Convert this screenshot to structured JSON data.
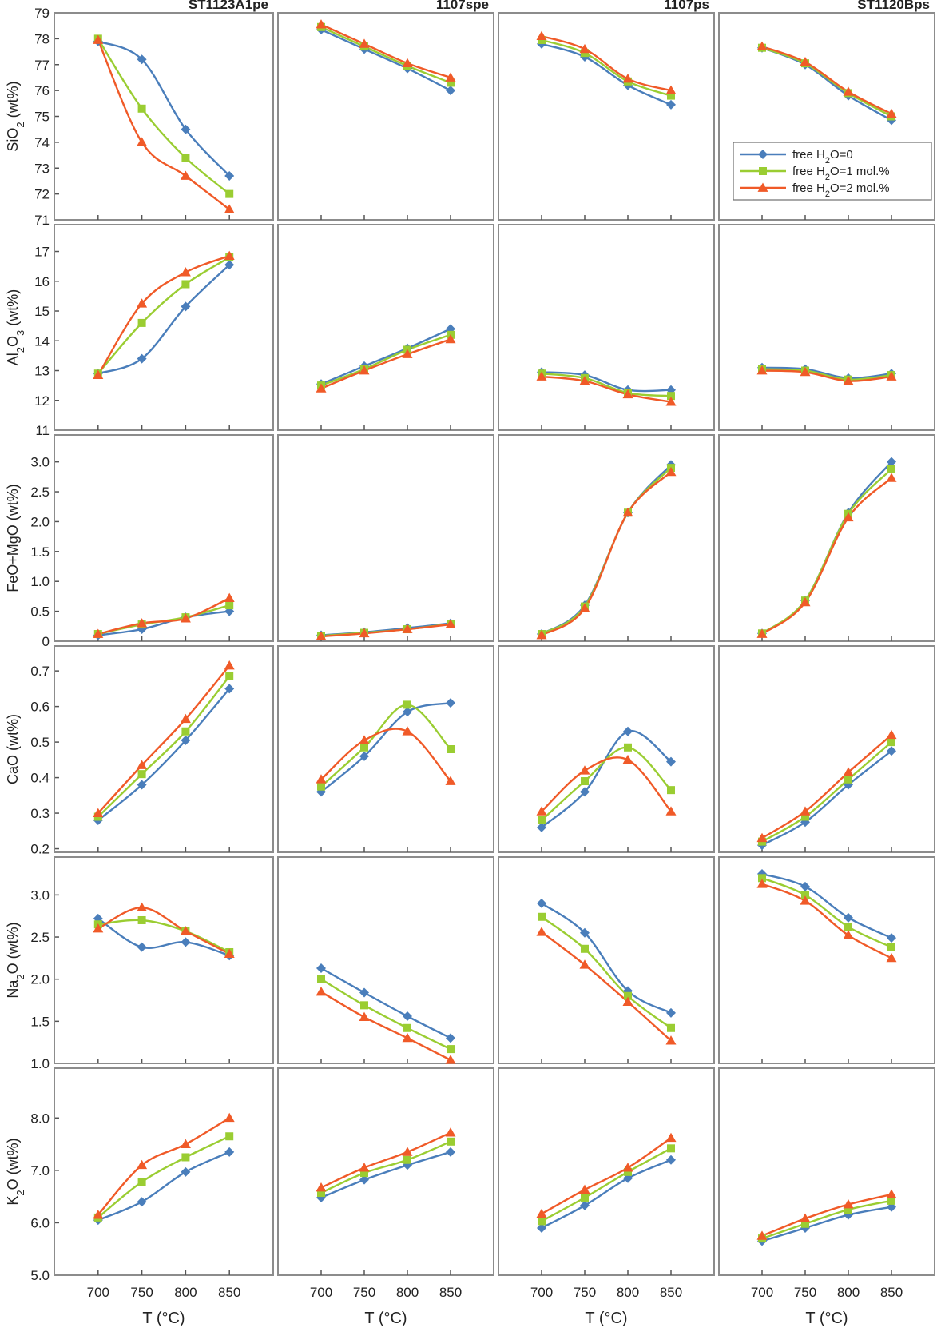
{
  "chart_data": {
    "type": "line",
    "columns": [
      "ST1123A1pe",
      "1107spe",
      "1107ps",
      "ST1120Bps"
    ],
    "x": [
      700,
      750,
      800,
      850
    ],
    "x_tick_labels": [
      "700",
      "750",
      "800",
      "850"
    ],
    "xlabel": "T (°C)",
    "legend": {
      "location": "upper-right of SiO2 panel, column ST1120Bps",
      "entries": [
        {
          "prefix": "free H",
          "sub": "2",
          "suffix": "O=0",
          "color": "#4a7ebb",
          "marker": "diamond"
        },
        {
          "prefix": "free H",
          "sub": "2",
          "suffix": "O=1 mol.%",
          "color": "#9acd32",
          "marker": "square"
        },
        {
          "prefix": "free H",
          "sub": "2",
          "suffix": "O=2 mol.%",
          "color": "#f05a28",
          "marker": "triangle"
        }
      ]
    },
    "rows": [
      {
        "ylabel_parts": [
          {
            "t": "SiO"
          },
          {
            "t": "2",
            "sub": true
          },
          {
            "t": "  (wt%)"
          }
        ],
        "ylim": [
          71,
          79
        ],
        "yticks": [
          "71",
          "72",
          "73",
          "74",
          "75",
          "76",
          "77",
          "78",
          "79"
        ],
        "panels": [
          [
            [
              77.9,
              77.2,
              74.5,
              72.7
            ],
            [
              78.0,
              75.3,
              73.4,
              72.0
            ],
            [
              77.95,
              74.0,
              72.7,
              71.4
            ]
          ],
          [
            [
              78.35,
              77.6,
              76.85,
              76.0
            ],
            [
              78.45,
              77.7,
              76.95,
              76.3
            ],
            [
              78.55,
              77.8,
              77.05,
              76.5
            ]
          ],
          [
            [
              77.8,
              77.3,
              76.2,
              75.45
            ],
            [
              77.95,
              77.45,
              76.35,
              75.8
            ],
            [
              78.1,
              77.6,
              76.45,
              76.0
            ]
          ],
          [
            [
              77.65,
              77.0,
              75.8,
              74.85
            ],
            [
              77.65,
              77.05,
              75.9,
              75.0
            ],
            [
              77.7,
              77.1,
              75.95,
              75.1
            ]
          ]
        ]
      },
      {
        "ylabel_parts": [
          {
            "t": "Al"
          },
          {
            "t": "2",
            "sub": true
          },
          {
            "t": "O"
          },
          {
            "t": "3",
            "sub": true
          },
          {
            "t": "  (wt%)"
          }
        ],
        "ylim": [
          11,
          17.9
        ],
        "yticks": [
          "11",
          "12",
          "13",
          "14",
          "15",
          "16",
          "17"
        ],
        "panels": [
          [
            [
              12.9,
              13.4,
              15.15,
              16.55
            ],
            [
              12.9,
              14.6,
              15.9,
              16.8
            ],
            [
              12.85,
              15.25,
              16.3,
              16.85
            ]
          ],
          [
            [
              12.55,
              13.15,
              13.75,
              14.4
            ],
            [
              12.5,
              13.05,
              13.7,
              14.2
            ],
            [
              12.4,
              13.0,
              13.55,
              14.05
            ]
          ],
          [
            [
              12.95,
              12.85,
              12.35,
              12.35
            ],
            [
              12.9,
              12.75,
              12.25,
              12.15
            ],
            [
              12.8,
              12.65,
              12.2,
              11.95
            ]
          ],
          [
            [
              13.1,
              13.05,
              12.75,
              12.9
            ],
            [
              13.05,
              13.0,
              12.7,
              12.85
            ],
            [
              13.0,
              12.95,
              12.65,
              12.8
            ]
          ]
        ]
      },
      {
        "ylabel_parts": [
          {
            "t": "FeO+MgO  (wt%)"
          }
        ],
        "ylim": [
          0,
          3.45
        ],
        "yticks": [
          "0",
          "0.5",
          "1.0",
          "1.5",
          "2.0",
          "2.5",
          "3.0"
        ],
        "panels": [
          [
            [
              0.1,
              0.2,
              0.4,
              0.5
            ],
            [
              0.12,
              0.28,
              0.4,
              0.6
            ],
            [
              0.12,
              0.3,
              0.38,
              0.72
            ]
          ],
          [
            [
              0.1,
              0.15,
              0.22,
              0.3
            ],
            [
              0.09,
              0.14,
              0.2,
              0.29
            ],
            [
              0.08,
              0.13,
              0.2,
              0.28
            ]
          ],
          [
            [
              0.12,
              0.6,
              2.15,
              2.95
            ],
            [
              0.12,
              0.58,
              2.15,
              2.9
            ],
            [
              0.1,
              0.55,
              2.15,
              2.83
            ]
          ],
          [
            [
              0.13,
              0.68,
              2.15,
              3.0
            ],
            [
              0.13,
              0.68,
              2.13,
              2.88
            ],
            [
              0.12,
              0.65,
              2.07,
              2.73
            ]
          ]
        ]
      },
      {
        "ylabel_parts": [
          {
            "t": "CaO  (wt%)"
          }
        ],
        "ylim": [
          0.19,
          0.77
        ],
        "yticks": [
          "0.2",
          "0.3",
          "0.4",
          "0.5",
          "0.6",
          "0.7"
        ],
        "panels": [
          [
            [
              0.28,
              0.38,
              0.505,
              0.65
            ],
            [
              0.29,
              0.41,
              0.53,
              0.685
            ],
            [
              0.3,
              0.435,
              0.565,
              0.715
            ]
          ],
          [
            [
              0.36,
              0.46,
              0.585,
              0.61
            ],
            [
              0.375,
              0.485,
              0.605,
              0.48
            ],
            [
              0.395,
              0.505,
              0.53,
              0.39
            ]
          ],
          [
            [
              0.26,
              0.36,
              0.53,
              0.445
            ],
            [
              0.28,
              0.39,
              0.485,
              0.365
            ],
            [
              0.305,
              0.42,
              0.45,
              0.305
            ]
          ],
          [
            [
              0.21,
              0.275,
              0.38,
              0.475
            ],
            [
              0.22,
              0.29,
              0.395,
              0.5
            ],
            [
              0.23,
              0.305,
              0.415,
              0.52
            ]
          ]
        ]
      },
      {
        "ylabel_parts": [
          {
            "t": "Na"
          },
          {
            "t": "2",
            "sub": true
          },
          {
            "t": "O  (wt%)"
          }
        ],
        "ylim": [
          1.0,
          3.45
        ],
        "yticks": [
          "1.0",
          "1.5",
          "2.0",
          "2.5",
          "3.0"
        ],
        "panels": [
          [
            [
              2.72,
              2.38,
              2.44,
              2.28
            ],
            [
              2.65,
              2.7,
              2.57,
              2.32
            ],
            [
              2.6,
              2.85,
              2.57,
              2.3
            ]
          ],
          [
            [
              2.13,
              1.84,
              1.56,
              1.3
            ],
            [
              2.0,
              1.69,
              1.42,
              1.17
            ],
            [
              1.85,
              1.55,
              1.3,
              1.04
            ]
          ],
          [
            [
              2.9,
              2.55,
              1.86,
              1.6
            ],
            [
              2.74,
              2.36,
              1.8,
              1.42
            ],
            [
              2.56,
              2.17,
              1.73,
              1.27
            ]
          ],
          [
            [
              3.25,
              3.1,
              2.73,
              2.49
            ],
            [
              3.2,
              3.0,
              2.62,
              2.38
            ],
            [
              3.13,
              2.93,
              2.52,
              2.25
            ]
          ]
        ]
      },
      {
        "ylabel_parts": [
          {
            "t": "K"
          },
          {
            "t": "2",
            "sub": true
          },
          {
            "t": "O  (wt%)"
          }
        ],
        "ylim": [
          5.0,
          8.95
        ],
        "yticks": [
          "5.0",
          "6.0",
          "7.0",
          "8.0"
        ],
        "panels": [
          [
            [
              6.05,
              6.4,
              6.97,
              7.35
            ],
            [
              6.1,
              6.78,
              7.25,
              7.65
            ],
            [
              6.15,
              7.1,
              7.5,
              8.0
            ]
          ],
          [
            [
              6.48,
              6.82,
              7.1,
              7.35
            ],
            [
              6.57,
              6.95,
              7.2,
              7.55
            ],
            [
              6.67,
              7.05,
              7.35,
              7.72
            ]
          ],
          [
            [
              5.9,
              6.33,
              6.85,
              7.2
            ],
            [
              6.03,
              6.48,
              6.97,
              7.42
            ],
            [
              6.17,
              6.63,
              7.05,
              7.62
            ]
          ],
          [
            [
              5.65,
              5.9,
              6.15,
              6.3
            ],
            [
              5.7,
              5.98,
              6.25,
              6.42
            ],
            [
              5.75,
              6.08,
              6.35,
              6.54
            ]
          ]
        ]
      }
    ]
  }
}
